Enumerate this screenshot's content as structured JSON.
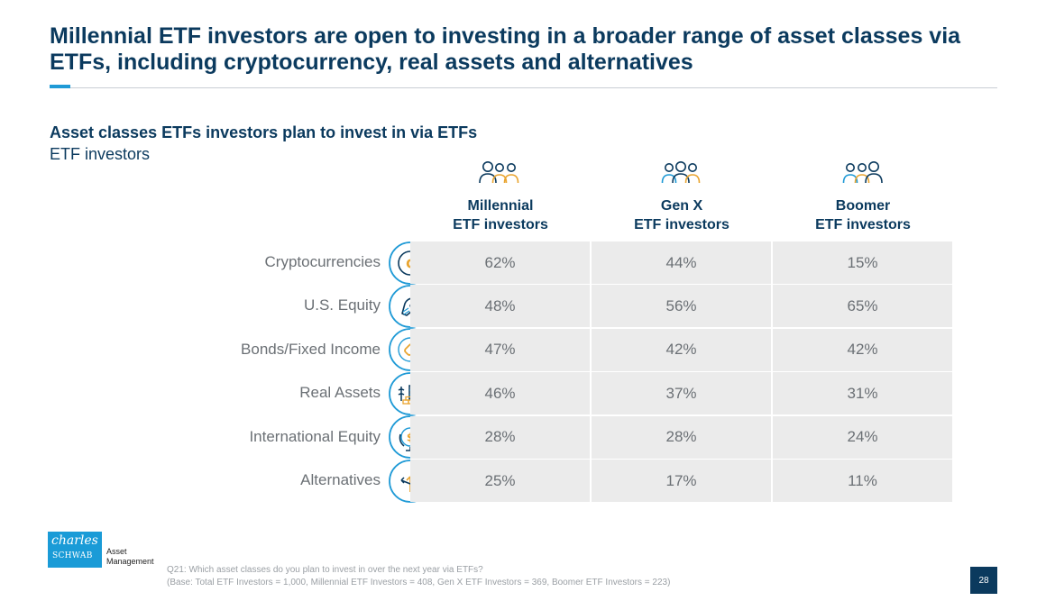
{
  "title": "Millennial ETF investors are open to investing in a broader range of asset classes via ETFs, including cryptocurrency, real assets and alternatives",
  "subtitle": "Asset classes ETFs investors plan to invest in via ETFs",
  "subsubtitle": "ETF investors",
  "colors": {
    "navy": "#0b3a5e",
    "blue": "#1f9ad6",
    "gold": "#e9a531",
    "cell": "#ebebeb",
    "text_gray": "#6b7075"
  },
  "chart_data": {
    "type": "table",
    "title": "Asset classes ETFs investors plan to invest in via ETFs",
    "subtitle": "ETF investors",
    "unit": "%",
    "columns": [
      {
        "name": "Millennial",
        "label1": "Millennial",
        "label2": "ETF investors",
        "icon": "people-group-icon"
      },
      {
        "name": "Gen X",
        "label1": "Gen X",
        "label2": "ETF investors",
        "icon": "people-group-icon"
      },
      {
        "name": "Boomer",
        "label1": "Boomer",
        "label2": "ETF investors",
        "icon": "people-group-icon"
      }
    ],
    "categories": [
      "Cryptocurrencies",
      "U.S. Equity",
      "Bonds/Fixed Income",
      "Real Assets",
      "International Equity",
      "Alternatives"
    ],
    "row_icons": [
      "crypto-coin-icon",
      "eagle-icon",
      "bond-link-icon",
      "real-assets-icon",
      "globe-dollar-icon",
      "alternatives-arrows-icon"
    ],
    "series": [
      {
        "name": "Millennial ETF investors",
        "values": [
          62,
          48,
          47,
          46,
          28,
          25
        ]
      },
      {
        "name": "Gen X ETF investors",
        "values": [
          44,
          56,
          42,
          37,
          28,
          17
        ]
      },
      {
        "name": "Boomer ETF investors",
        "values": [
          15,
          65,
          42,
          31,
          24,
          11
        ]
      }
    ],
    "cells": [
      [
        "62%",
        "44%",
        "15%"
      ],
      [
        "48%",
        "56%",
        "65%"
      ],
      [
        "47%",
        "42%",
        "42%"
      ],
      [
        "46%",
        "37%",
        "31%"
      ],
      [
        "28%",
        "28%",
        "24%"
      ],
      [
        "25%",
        "17%",
        "11%"
      ]
    ]
  },
  "logo": {
    "line1": "charles",
    "line2": "SCHWAB",
    "side1": "Asset",
    "side2": "Management"
  },
  "footnote": {
    "line1": "Q21: Which asset classes do you plan to invest in over the next year via ETFs?",
    "line2": "(Base: Total ETF Investors = 1,000, Millennial ETF Investors = 408, Gen X ETF Investors = 369, Boomer ETF Investors = 223)"
  },
  "page_number": "28"
}
